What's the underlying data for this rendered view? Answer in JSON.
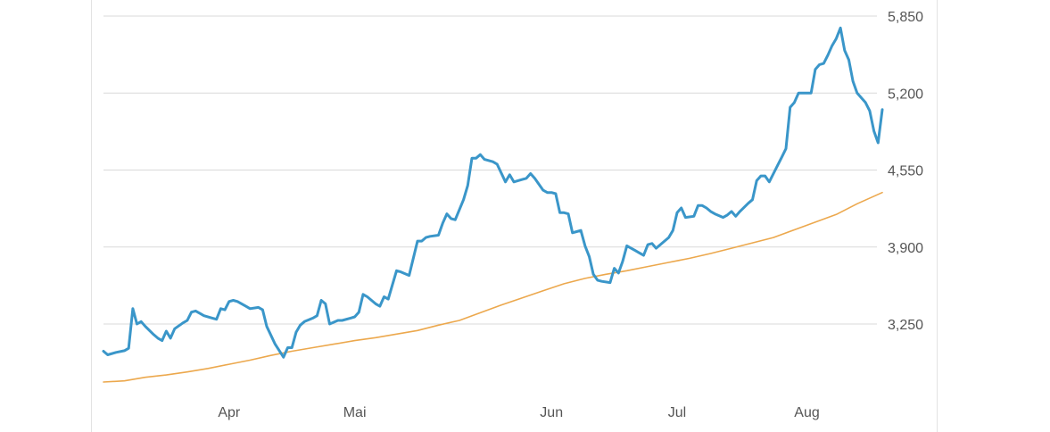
{
  "chart_data": {
    "type": "line",
    "title": "",
    "xlabel": "",
    "ylabel": "",
    "ylim": [
      2650,
      5950
    ],
    "y_ticks": [
      3250,
      3900,
      4550,
      5200,
      5850
    ],
    "y_tick_labels": [
      "3,250",
      "3,900",
      "4,550",
      "5,200",
      "5,850"
    ],
    "x_ticks": [
      {
        "label": "Apr",
        "t": 30
      },
      {
        "label": "Mai",
        "t": 60
      },
      {
        "label": "Jun",
        "t": 107
      },
      {
        "label": "Jul",
        "t": 137
      },
      {
        "label": "Aug",
        "t": 168
      }
    ],
    "x_range": [
      0,
      183
    ],
    "grid": true,
    "legend": "none",
    "colors": {
      "price": "#3a96c9",
      "average": "#eca84d"
    },
    "series": [
      {
        "key": "price",
        "points": [
          [
            0,
            3020
          ],
          [
            1,
            2990
          ],
          [
            3,
            3010
          ],
          [
            5,
            3025
          ],
          [
            6,
            3045
          ],
          [
            7,
            3380
          ],
          [
            8,
            3250
          ],
          [
            9,
            3270
          ],
          [
            10,
            3230
          ],
          [
            12,
            3160
          ],
          [
            13,
            3130
          ],
          [
            14,
            3110
          ],
          [
            15,
            3190
          ],
          [
            16,
            3130
          ],
          [
            17,
            3210
          ],
          [
            19,
            3260
          ],
          [
            20,
            3280
          ],
          [
            21,
            3350
          ],
          [
            22,
            3360
          ],
          [
            23,
            3340
          ],
          [
            24,
            3320
          ],
          [
            26,
            3300
          ],
          [
            27,
            3290
          ],
          [
            28,
            3380
          ],
          [
            29,
            3370
          ],
          [
            30,
            3440
          ],
          [
            31,
            3450
          ],
          [
            32,
            3440
          ],
          [
            34,
            3400
          ],
          [
            35,
            3380
          ],
          [
            37,
            3390
          ],
          [
            38,
            3370
          ],
          [
            39,
            3230
          ],
          [
            41,
            3080
          ],
          [
            43,
            2970
          ],
          [
            44,
            3050
          ],
          [
            45,
            3050
          ],
          [
            46,
            3180
          ],
          [
            47,
            3240
          ],
          [
            48,
            3270
          ],
          [
            50,
            3300
          ],
          [
            51,
            3320
          ],
          [
            52,
            3450
          ],
          [
            53,
            3420
          ],
          [
            54,
            3250
          ],
          [
            56,
            3280
          ],
          [
            57,
            3280
          ],
          [
            59,
            3300
          ],
          [
            60,
            3310
          ],
          [
            61,
            3350
          ],
          [
            62,
            3500
          ],
          [
            63,
            3480
          ],
          [
            65,
            3420
          ],
          [
            66,
            3400
          ],
          [
            67,
            3480
          ],
          [
            68,
            3460
          ],
          [
            70,
            3700
          ],
          [
            71,
            3690
          ],
          [
            73,
            3660
          ],
          [
            75,
            3950
          ],
          [
            76,
            3950
          ],
          [
            77,
            3980
          ],
          [
            78,
            3990
          ],
          [
            80,
            4000
          ],
          [
            81,
            4100
          ],
          [
            82,
            4180
          ],
          [
            83,
            4140
          ],
          [
            84,
            4130
          ],
          [
            86,
            4300
          ],
          [
            87,
            4420
          ],
          [
            88,
            4650
          ],
          [
            89,
            4650
          ],
          [
            90,
            4680
          ],
          [
            91,
            4640
          ],
          [
            93,
            4620
          ],
          [
            94,
            4600
          ],
          [
            96,
            4450
          ],
          [
            97,
            4510
          ],
          [
            98,
            4450
          ],
          [
            100,
            4470
          ],
          [
            101,
            4480
          ],
          [
            102,
            4520
          ],
          [
            103,
            4480
          ],
          [
            105,
            4380
          ],
          [
            106,
            4360
          ],
          [
            107,
            4360
          ],
          [
            108,
            4350
          ],
          [
            109,
            4190
          ],
          [
            110,
            4190
          ],
          [
            111,
            4180
          ],
          [
            112,
            4020
          ],
          [
            113,
            4030
          ],
          [
            114,
            4040
          ],
          [
            115,
            3910
          ],
          [
            116,
            3820
          ],
          [
            117,
            3670
          ],
          [
            118,
            3620
          ],
          [
            119,
            3610
          ],
          [
            121,
            3600
          ],
          [
            122,
            3720
          ],
          [
            123,
            3680
          ],
          [
            124,
            3780
          ],
          [
            125,
            3910
          ],
          [
            127,
            3870
          ],
          [
            128,
            3850
          ],
          [
            129,
            3830
          ],
          [
            130,
            3920
          ],
          [
            131,
            3930
          ],
          [
            132,
            3890
          ],
          [
            133,
            3920
          ],
          [
            134,
            3950
          ],
          [
            135,
            3980
          ],
          [
            136,
            4040
          ],
          [
            137,
            4190
          ],
          [
            138,
            4230
          ],
          [
            139,
            4150
          ],
          [
            141,
            4160
          ],
          [
            142,
            4250
          ],
          [
            143,
            4250
          ],
          [
            144,
            4230
          ],
          [
            145,
            4200
          ],
          [
            146,
            4180
          ],
          [
            148,
            4150
          ],
          [
            149,
            4170
          ],
          [
            150,
            4200
          ],
          [
            151,
            4160
          ],
          [
            152,
            4200
          ],
          [
            154,
            4270
          ],
          [
            155,
            4300
          ],
          [
            156,
            4460
          ],
          [
            157,
            4500
          ],
          [
            158,
            4500
          ],
          [
            159,
            4450
          ],
          [
            160,
            4520
          ],
          [
            161,
            4590
          ],
          [
            162,
            4660
          ],
          [
            163,
            4730
          ],
          [
            164,
            5080
          ],
          [
            165,
            5120
          ],
          [
            166,
            5200
          ],
          [
            167,
            5200
          ],
          [
            169,
            5200
          ],
          [
            170,
            5400
          ],
          [
            171,
            5440
          ],
          [
            172,
            5450
          ],
          [
            173,
            5520
          ],
          [
            174,
            5600
          ],
          [
            175,
            5660
          ],
          [
            176,
            5750
          ],
          [
            177,
            5560
          ],
          [
            178,
            5480
          ],
          [
            179,
            5300
          ],
          [
            180,
            5200
          ],
          [
            182,
            5120
          ],
          [
            183,
            5050
          ],
          [
            184,
            4880
          ],
          [
            185,
            4780
          ],
          [
            186,
            5060
          ]
        ]
      },
      {
        "key": "average",
        "points": [
          [
            0,
            2760
          ],
          [
            5,
            2770
          ],
          [
            10,
            2800
          ],
          [
            15,
            2820
          ],
          [
            20,
            2845
          ],
          [
            25,
            2875
          ],
          [
            30,
            2910
          ],
          [
            35,
            2945
          ],
          [
            40,
            2985
          ],
          [
            45,
            3020
          ],
          [
            50,
            3050
          ],
          [
            55,
            3080
          ],
          [
            60,
            3110
          ],
          [
            65,
            3135
          ],
          [
            70,
            3165
          ],
          [
            75,
            3195
          ],
          [
            80,
            3240
          ],
          [
            85,
            3280
          ],
          [
            90,
            3345
          ],
          [
            95,
            3410
          ],
          [
            100,
            3470
          ],
          [
            105,
            3530
          ],
          [
            110,
            3590
          ],
          [
            115,
            3635
          ],
          [
            120,
            3670
          ],
          [
            125,
            3700
          ],
          [
            130,
            3735
          ],
          [
            135,
            3770
          ],
          [
            140,
            3805
          ],
          [
            145,
            3845
          ],
          [
            150,
            3890
          ],
          [
            155,
            3935
          ],
          [
            160,
            3980
          ],
          [
            165,
            4045
          ],
          [
            170,
            4110
          ],
          [
            175,
            4175
          ],
          [
            180,
            4265
          ],
          [
            186,
            4360
          ]
        ]
      }
    ]
  }
}
